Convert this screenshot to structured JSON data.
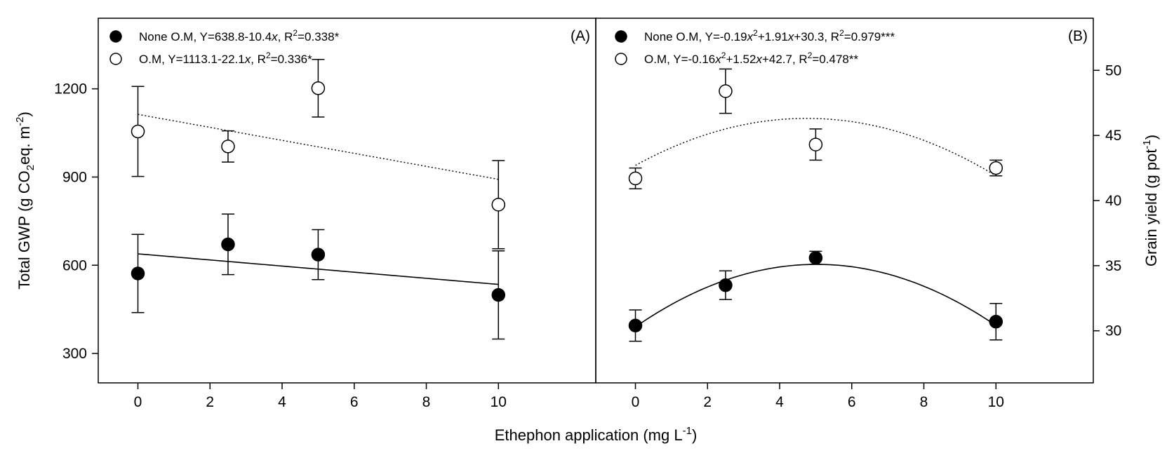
{
  "figure": {
    "xlabel_main": "Ethephon application (mg L",
    "xlabel_sup": "-1",
    "xlabel_tail": ")"
  },
  "chart_data": [
    {
      "type": "scatter",
      "panel_label": "(A)",
      "ylabel": {
        "pre": "Total GWP (g CO",
        "sub": "2",
        "mid": "eq. m",
        "sup": "-2",
        "post": ")"
      },
      "y_axis_side": "left",
      "xlim": [
        -1.1,
        12.7
      ],
      "ylim": [
        200,
        1440
      ],
      "xticks": [
        0,
        2,
        4,
        6,
        8,
        10
      ],
      "yticks": [
        300,
        600,
        900,
        1200
      ],
      "grid": false,
      "legend_position": "top-left",
      "series": [
        {
          "name": "None O.M",
          "marker": "filled-circle",
          "equation": {
            "a": "None O.M, Y=638.8-10.4",
            "x1": "x",
            "b": ", R",
            "sup1": "2",
            "c": "=0.338*"
          },
          "x": [
            0,
            2.5,
            5,
            10
          ],
          "y": [
            572,
            671,
            636,
            499
          ],
          "err": [
            133,
            103,
            85,
            150
          ],
          "fit": {
            "kind": "linear",
            "coef": [
              638.8,
              -10.4
            ],
            "style": "solid",
            "range": [
              0,
              10
            ]
          }
        },
        {
          "name": "O.M",
          "marker": "open-circle",
          "equation": {
            "a": "O.M, Y=1113.1-22.1",
            "x1": "x",
            "b": ", R",
            "sup1": "2",
            "c": "=0.336*"
          },
          "x": [
            0,
            2.5,
            5,
            10
          ],
          "y": [
            1055,
            1004,
            1202,
            806
          ],
          "err": [
            153,
            53,
            98,
            150
          ],
          "fit": {
            "kind": "linear",
            "coef": [
              1113.1,
              -22.1
            ],
            "style": "dotted",
            "range": [
              0,
              10
            ]
          }
        }
      ]
    },
    {
      "type": "scatter",
      "panel_label": "(B)",
      "ylabel": {
        "pre": "Grain yield (g pot",
        "sup": "-1",
        "post": ")"
      },
      "y_axis_side": "right",
      "xlim": [
        -1.1,
        12.7
      ],
      "ylim": [
        26,
        54
      ],
      "xticks": [
        0,
        2,
        4,
        6,
        8,
        10
      ],
      "yticks": [
        30,
        35,
        40,
        45,
        50
      ],
      "grid": false,
      "legend_position": "top-left",
      "series": [
        {
          "name": "None O.M",
          "marker": "filled-circle",
          "equation": {
            "a": "None O.M, Y=-0.19",
            "x1": "x",
            "sup1": "2",
            "m": "+1.91",
            "x2": "x",
            "b": "+30.3, R",
            "sup2": "2",
            "c": "=0.979***"
          },
          "x": [
            0,
            2.5,
            5,
            10
          ],
          "y": [
            30.4,
            33.5,
            35.6,
            30.7
          ],
          "err": [
            1.2,
            1.1,
            0.5,
            1.4
          ],
          "fit": {
            "kind": "quadratic",
            "coef": [
              30.3,
              1.91,
              -0.19
            ],
            "style": "solid",
            "range": [
              0,
              10
            ]
          }
        },
        {
          "name": "O.M",
          "marker": "open-circle",
          "equation": {
            "a": "O.M, Y=-0.16",
            "x1": "x",
            "sup1": "2",
            "m": "+1.52",
            "x2": "x",
            "b": "+42.7, R",
            "sup2": "2",
            "c": "=0.478**"
          },
          "x": [
            0,
            2.5,
            5,
            10
          ],
          "y": [
            41.7,
            48.4,
            44.3,
            42.5
          ],
          "err": [
            0.8,
            1.7,
            1.2,
            0.6
          ],
          "fit": {
            "kind": "quadratic",
            "coef": [
              42.7,
              1.52,
              -0.16
            ],
            "style": "dotted",
            "range": [
              0,
              10
            ]
          }
        }
      ]
    }
  ]
}
